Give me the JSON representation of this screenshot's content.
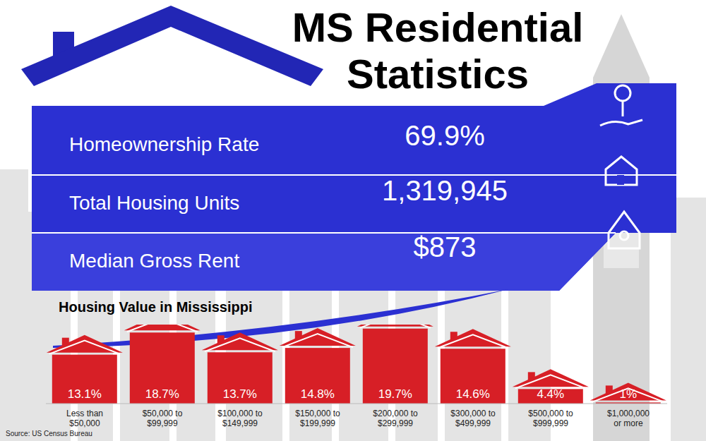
{
  "title": "MS Residential Statistics",
  "stats": [
    {
      "label": "Homeownership Rate",
      "value": "69.9%"
    },
    {
      "label": "Total Housing Units",
      "value": "1,319,945"
    },
    {
      "label": "Median Gross Rent",
      "value": "$873"
    }
  ],
  "chart_data": {
    "type": "bar",
    "title": "Housing Value in Mississippi",
    "categories": [
      "Less than $50,000",
      "$50,000 to $99,999",
      "$100,000 to $149,999",
      "$150,000 to $199,999",
      "$200,000 to $299,999",
      "$300,000 to $499,999",
      "$500,000 to $999,999",
      "$1,000,000 or more"
    ],
    "values": [
      13.1,
      18.7,
      13.7,
      14.8,
      19.7,
      14.6,
      4.4,
      1
    ],
    "value_labels": [
      "13.1%",
      "18.7%",
      "13.7%",
      "14.8%",
      "19.7%",
      "14.6%",
      "4.4%",
      "1%"
    ],
    "color": "#d71f26",
    "ylim": [
      0,
      20
    ],
    "data_labels": true,
    "tick_labels": "x"
  },
  "source": "Source: US Census Bureau"
}
